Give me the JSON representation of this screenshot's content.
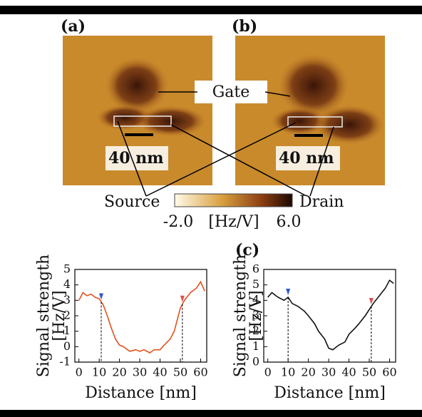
{
  "figure": {
    "panels": [
      {
        "label": "(a)",
        "scale_label": "40 nm"
      },
      {
        "label": "(b)",
        "scale_label": "40 nm"
      }
    ],
    "gate": "Gate",
    "source": "Source",
    "drain": "Drain",
    "colorbar": {
      "label": "[Hz/V]",
      "ticks": [
        {
          "value": -2,
          "label": "-2.0"
        },
        {
          "value": 6,
          "label": "6.0"
        }
      ]
    },
    "panel_c": "(c)"
  },
  "chart_data": [
    {
      "type": "line",
      "x_label": "Distance [nm]",
      "y_label": [
        "Signal strength",
        "[Hz/V]"
      ],
      "xlim": [
        -2,
        63
      ],
      "xticks": [
        0,
        10,
        20,
        30,
        40,
        50,
        60
      ],
      "ylim": [
        -1,
        5
      ],
      "yticks": [
        -1,
        0,
        1,
        2,
        3,
        4,
        5
      ],
      "series": [
        {
          "color": "#e0531f",
          "x": [
            0,
            2,
            4,
            6,
            8,
            10,
            12,
            14,
            16,
            18,
            20,
            22,
            25,
            28,
            30,
            32,
            35,
            37,
            40,
            42,
            45,
            47,
            48,
            50,
            52,
            55,
            58,
            60,
            62
          ],
          "values": [
            3.0,
            3.5,
            3.3,
            3.4,
            3.2,
            3.1,
            2.7,
            2.0,
            1.2,
            0.5,
            0.1,
            0.0,
            -0.3,
            -0.2,
            -0.3,
            -0.2,
            -0.4,
            -0.2,
            -0.2,
            0.1,
            0.5,
            1.0,
            1.5,
            2.5,
            3.0,
            3.5,
            3.8,
            4.2,
            3.6
          ]
        }
      ],
      "markers": [
        {
          "x": 11,
          "color": "#3355cc"
        },
        {
          "x": 51,
          "color": "#e05050"
        }
      ]
    },
    {
      "type": "line",
      "x_label": "Distance [nm]",
      "y_label": [
        "Signal strength",
        "[Hz/V]"
      ],
      "xlim": [
        -2,
        63
      ],
      "xticks": [
        0,
        10,
        20,
        30,
        40,
        50,
        60
      ],
      "ylim": [
        0,
        6
      ],
      "yticks": [
        0,
        1,
        2,
        3,
        4,
        5,
        6
      ],
      "series": [
        {
          "color": "#111111",
          "x": [
            0,
            2,
            5,
            8,
            10,
            12,
            15,
            18,
            20,
            23,
            25,
            28,
            30,
            32,
            35,
            38,
            40,
            43,
            45,
            48,
            50,
            52,
            55,
            58,
            60,
            62
          ],
          "values": [
            4.2,
            4.5,
            4.2,
            4.0,
            4.2,
            3.8,
            3.6,
            3.3,
            3.0,
            2.5,
            2.0,
            1.5,
            0.9,
            0.8,
            1.1,
            1.3,
            1.8,
            2.2,
            2.5,
            3.0,
            3.4,
            3.8,
            4.3,
            4.8,
            5.3,
            5.1
          ]
        }
      ],
      "markers": [
        {
          "x": 10,
          "color": "#3355cc"
        },
        {
          "x": 51,
          "color": "#e05050"
        }
      ]
    }
  ]
}
